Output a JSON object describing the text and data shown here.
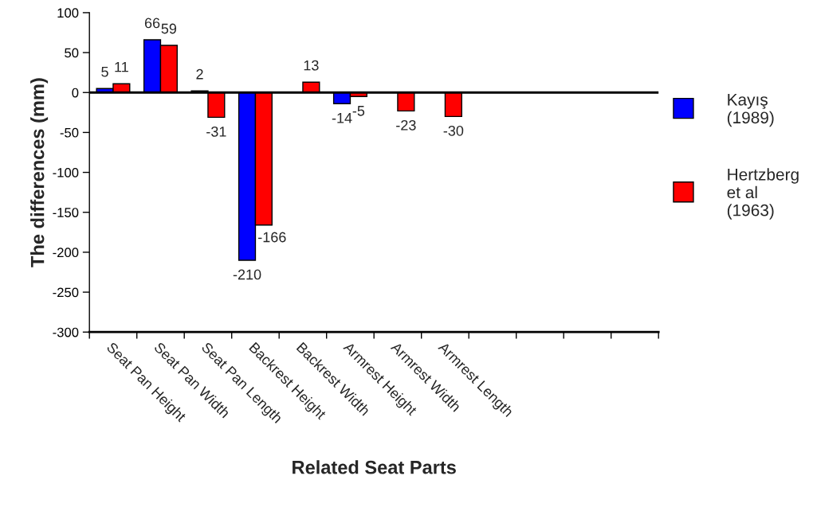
{
  "chart_data": {
    "type": "bar",
    "xlabel": "Related Seat Parts",
    "ylabel": "The differences (mm)",
    "categories": [
      "Seat Pan Height",
      "Seat Pan Width",
      "Seat Pan Length",
      "Backrest Height",
      "Backrest Width",
      "Armrest Height",
      "Armrest Width",
      "Armrest Length",
      null,
      null,
      null,
      null
    ],
    "series": [
      {
        "name": "Kayış\n(1989)",
        "color": "#0000ff",
        "values": [
          5,
          66,
          2,
          -210,
          null,
          -14,
          null,
          null,
          null,
          null,
          null,
          null
        ],
        "value_labels": [
          "5",
          "66",
          "2",
          "-210",
          null,
          "-14",
          null,
          null,
          null,
          null,
          null,
          null
        ]
      },
      {
        "name": "Hertzberg\net al\n(1963)",
        "color": "#ff0000",
        "values": [
          11,
          59,
          -31,
          -166,
          13,
          -5,
          -23,
          -30,
          null,
          null,
          null,
          null
        ],
        "value_labels": [
          "11",
          "59",
          "-31",
          "-166",
          "13",
          "-5",
          "-23",
          "-30",
          null,
          null,
          null,
          null
        ]
      }
    ],
    "ylim": [
      -300,
      100
    ],
    "yticks": [
      100,
      50,
      0,
      -50,
      -100,
      -150,
      -200,
      -250,
      -300
    ],
    "ref_lines": [
      {
        "axis": "y",
        "value": 0,
        "label": null
      }
    ],
    "grid": false,
    "legend": "right"
  }
}
